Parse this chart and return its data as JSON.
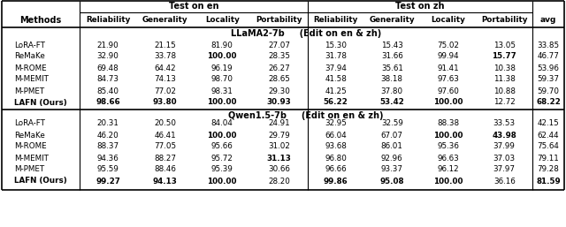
{
  "section1_title": "LLaMA2-7b     (Edit on en & zh)",
  "section2_title": "Qwen1.5-7b     (Edit on en & zh)",
  "col_headers_mid": [
    "Methods",
    "Reliability",
    "Generality",
    "Locality",
    "Portability",
    "Reliability",
    "Generality",
    "Locality",
    "Portability",
    "avg"
  ],
  "section1_rows": [
    [
      "LoRA-FT",
      "21.90",
      "21.15",
      "81.90",
      "27.07",
      "15.30",
      "15.43",
      "75.02",
      "13.05",
      "33.85"
    ],
    [
      "ReMaKe",
      "32.90",
      "33.78",
      "100.00",
      "28.35",
      "31.78",
      "31.66",
      "99.94",
      "15.77",
      "46.77"
    ],
    [
      "M-ROME",
      "69.48",
      "64.42",
      "96.19",
      "26.27",
      "37.94",
      "35.61",
      "91.41",
      "10.38",
      "53.96"
    ],
    [
      "M-MEMIT",
      "84.73",
      "74.13",
      "98.70",
      "28.65",
      "41.58",
      "38.18",
      "97.63",
      "11.38",
      "59.37"
    ],
    [
      "M-PMET",
      "85.40",
      "77.02",
      "98.31",
      "29.30",
      "41.25",
      "37.80",
      "97.60",
      "10.88",
      "59.70"
    ],
    [
      "LAFN (Ours)",
      "98.66",
      "93.80",
      "100.00",
      "30.93",
      "56.22",
      "53.42",
      "100.00",
      "12.72",
      "68.22"
    ]
  ],
  "section2_rows": [
    [
      "LoRA-FT",
      "20.31",
      "20.50",
      "84.04",
      "24.91",
      "32.95",
      "32.59",
      "88.38",
      "33.53",
      "42.15"
    ],
    [
      "ReMaKe",
      "46.20",
      "46.41",
      "100.00",
      "29.79",
      "66.04",
      "67.07",
      "100.00",
      "43.98",
      "62.44"
    ],
    [
      "M-ROME",
      "88.37",
      "77.05",
      "95.66",
      "31.02",
      "93.68",
      "86.01",
      "95.36",
      "37.99",
      "75.64"
    ],
    [
      "M-MEMIT",
      "94.36",
      "88.27",
      "95.72",
      "31.13",
      "96.80",
      "92.96",
      "96.63",
      "37.03",
      "79.11"
    ],
    [
      "M-PMET",
      "95.59",
      "88.46",
      "95.39",
      "30.66",
      "96.66",
      "93.37",
      "96.12",
      "37.97",
      "79.28"
    ],
    [
      "LAFN (Ours)",
      "99.27",
      "94.13",
      "100.00",
      "28.20",
      "99.86",
      "95.08",
      "100.00",
      "36.16",
      "81.59"
    ]
  ],
  "bold_s1": [
    [
      false,
      false,
      false,
      false,
      false,
      false,
      false,
      false,
      false,
      false
    ],
    [
      false,
      false,
      false,
      true,
      false,
      false,
      false,
      false,
      true,
      false
    ],
    [
      false,
      false,
      false,
      false,
      false,
      false,
      false,
      false,
      false,
      false
    ],
    [
      false,
      false,
      false,
      false,
      false,
      false,
      false,
      false,
      false,
      false
    ],
    [
      false,
      false,
      false,
      false,
      false,
      false,
      false,
      false,
      false,
      false
    ],
    [
      true,
      true,
      true,
      true,
      true,
      true,
      true,
      true,
      false,
      true
    ]
  ],
  "bold_s2": [
    [
      false,
      false,
      false,
      false,
      false,
      false,
      false,
      false,
      false,
      false
    ],
    [
      false,
      false,
      false,
      true,
      false,
      false,
      false,
      true,
      true,
      false
    ],
    [
      false,
      false,
      false,
      false,
      false,
      false,
      false,
      false,
      false,
      false
    ],
    [
      false,
      false,
      false,
      false,
      true,
      false,
      false,
      false,
      false,
      false
    ],
    [
      false,
      false,
      false,
      false,
      false,
      false,
      false,
      false,
      false,
      false
    ],
    [
      true,
      true,
      true,
      true,
      false,
      true,
      true,
      true,
      false,
      true
    ]
  ]
}
